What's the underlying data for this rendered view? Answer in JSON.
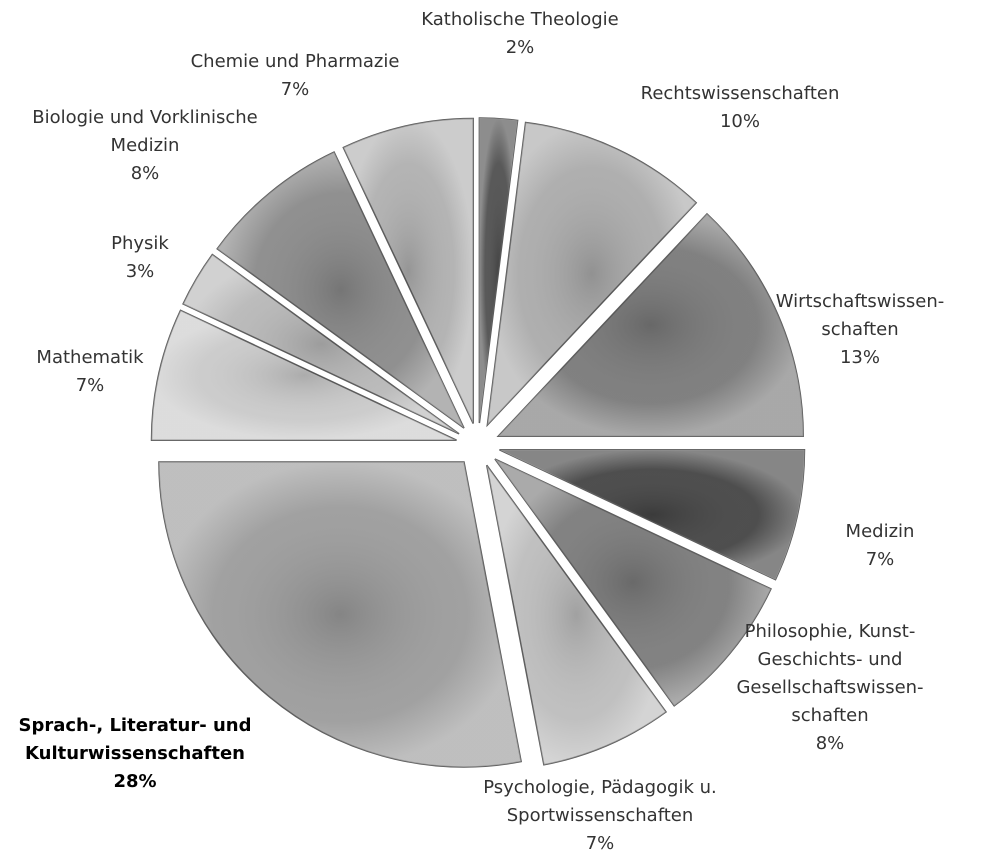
{
  "chart_data": {
    "type": "pie",
    "categories": [
      "Katholische Theologie",
      "Rechtswissenschaften",
      "Wirtschaftswissen-\nschaften",
      "Medizin",
      "Philosophie, Kunst-\nGeschichts- und\nGesellschaftswissen-\nschaften",
      "Psychologie, Pädagogik u.\nSportwissenschaften",
      "Sprach-, Literatur- und\nKulturwissenschaften",
      "Mathematik",
      "Physik",
      "Biologie und Vorklinische\nMedizin",
      "Chemie und Pharmazie"
    ],
    "values": [
      2,
      10,
      13,
      7,
      8,
      7,
      28,
      7,
      3,
      8,
      7
    ],
    "value_labels": [
      "2%",
      "10%",
      "13%",
      "7%",
      "8%",
      "7%",
      "28%",
      "7%",
      "3%",
      "8%",
      "7%"
    ],
    "colors": [
      "#505050",
      "#ababab",
      "#7a7a7a",
      "#454545",
      "#7c7c7c",
      "#bdbdbd",
      "#9c9c9c",
      "#cacaca",
      "#b8b8b8",
      "#8a8a8a",
      "#b0b0b0"
    ],
    "bold_labels": [
      6
    ]
  }
}
